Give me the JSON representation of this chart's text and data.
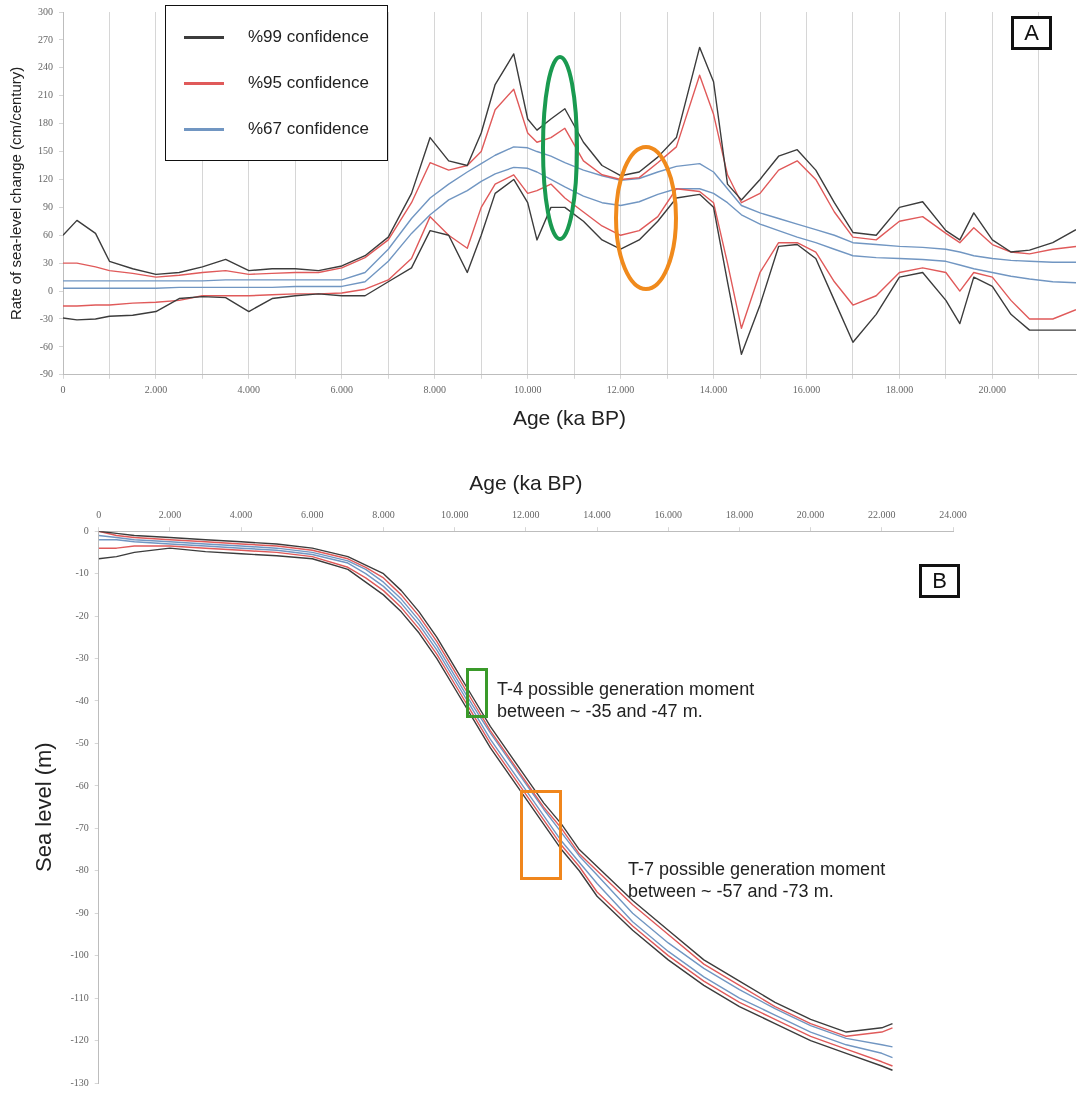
{
  "chart_data": [
    {
      "type": "line",
      "xlabel": "Age (ka BP)",
      "ylabel": "Rate of sea-level change (cm/century)",
      "legend": "top left",
      "grid": "x",
      "annotations": [
        "A"
      ],
      "x": [
        0,
        300,
        700,
        1000,
        1500,
        2000,
        2500,
        3000,
        3500,
        4000,
        4500,
        5000,
        5500,
        6000,
        6500,
        7000,
        7500,
        7900,
        8300,
        8700,
        9000,
        9300,
        9700,
        10000,
        10200,
        10500,
        10800,
        11200,
        11600,
        12000,
        12400,
        12800,
        13200,
        13700,
        14000,
        14300,
        14600,
        15000,
        15400,
        15800,
        16200,
        16600,
        17000,
        17500,
        18000,
        18500,
        19000,
        19300,
        19600,
        20000,
        20400,
        20800,
        21300,
        21800
      ],
      "xlim": [
        0,
        21800
      ],
      "xticks": [
        0,
        {
          "value": 1000,
          "label": null
        },
        {
          "value": 2000,
          "label": "2.000"
        },
        {
          "value": 3000,
          "label": null
        },
        {
          "value": 4000,
          "label": "4.000"
        },
        {
          "value": 5000,
          "label": null
        },
        {
          "value": 6000,
          "label": "6.000"
        },
        {
          "value": 7000,
          "label": null
        },
        {
          "value": 8000,
          "label": "8.000"
        },
        {
          "value": 9000,
          "label": null
        },
        {
          "value": 10000,
          "label": "10.000"
        },
        {
          "value": 11000,
          "label": null
        },
        {
          "value": 12000,
          "label": "12.000"
        },
        {
          "value": 13000,
          "label": null
        },
        {
          "value": 14000,
          "label": "14.000"
        },
        {
          "value": 15000,
          "label": null
        },
        {
          "value": 16000,
          "label": "16.000"
        },
        {
          "value": 17000,
          "label": null
        },
        {
          "value": 18000,
          "label": "18.000"
        },
        {
          "value": 19000,
          "label": null
        },
        {
          "value": 20000,
          "label": "20.000"
        },
        {
          "value": 21000,
          "label": null
        }
      ],
      "ylim": [
        -90,
        300
      ],
      "yticks": [
        -90,
        -60,
        -30,
        0,
        30,
        60,
        90,
        120,
        150,
        180,
        210,
        240,
        270,
        300
      ],
      "series": [
        {
          "name": "%99 confidence",
          "color": "#3c3c3c",
          "values": [
            60,
            76,
            62,
            32,
            24,
            18,
            20,
            26,
            34,
            22,
            24,
            24,
            22,
            27,
            38,
            58,
            105,
            165,
            140,
            135,
            170,
            222,
            255,
            185,
            173,
            185,
            196,
            160,
            135,
            124,
            128,
            144,
            165,
            262,
            225,
            115,
            98,
            120,
            145,
            152,
            130,
            95,
            63,
            60,
            90,
            96,
            65,
            55,
            84,
            55,
            42,
            44,
            52,
            66
          ]
        },
        {
          "name": "%95 confidence",
          "color": "#e05a5a",
          "values": [
            30,
            30,
            26,
            22,
            19,
            15,
            17,
            20,
            22,
            18,
            19,
            20,
            20,
            25,
            36,
            55,
            95,
            138,
            130,
            135,
            150,
            195,
            217,
            170,
            160,
            165,
            175,
            140,
            125,
            120,
            122,
            138,
            155,
            232,
            190,
            125,
            95,
            105,
            130,
            140,
            120,
            85,
            58,
            55,
            75,
            80,
            62,
            52,
            68,
            50,
            42,
            40,
            45,
            48
          ]
        },
        {
          "name": "%67 confidence",
          "color": "#7196c2",
          "values": [
            11,
            11,
            11,
            11,
            11,
            11,
            11,
            11,
            12,
            12,
            12,
            12,
            12,
            12,
            20,
            45,
            78,
            100,
            115,
            128,
            137,
            146,
            155,
            154,
            150,
            145,
            138,
            130,
            124,
            119,
            121,
            128,
            134,
            137,
            128,
            110,
            92,
            84,
            78,
            72,
            66,
            60,
            52,
            50,
            48,
            47,
            45,
            42,
            38,
            35,
            33,
            32,
            31,
            31
          ]
        },
        {
          "color": "#3c3c3c",
          "values": [
            -29,
            -31,
            -30,
            -27,
            -26,
            -22,
            -8,
            -6,
            -7,
            -22,
            -8,
            -5,
            -3,
            -5,
            -5,
            10,
            25,
            65,
            60,
            20,
            60,
            105,
            120,
            95,
            55,
            90,
            90,
            75,
            55,
            45,
            55,
            75,
            100,
            104,
            90,
            10,
            -68,
            -15,
            48,
            50,
            35,
            -10,
            -55,
            -25,
            15,
            20,
            -10,
            -35,
            15,
            5,
            -25,
            -42,
            -42,
            -42
          ]
        },
        {
          "color": "#e05a5a",
          "values": [
            -16,
            -16,
            -15,
            -15,
            -13,
            -12,
            -10,
            -5,
            -5,
            -5,
            -4,
            -3,
            -3,
            -2,
            2,
            12,
            35,
            80,
            60,
            46,
            90,
            115,
            125,
            105,
            108,
            115,
            100,
            85,
            70,
            60,
            65,
            80,
            110,
            107,
            95,
            30,
            -40,
            20,
            52,
            52,
            42,
            10,
            -15,
            -5,
            20,
            25,
            20,
            0,
            20,
            15,
            -10,
            -30,
            -30,
            -20
          ]
        },
        {
          "color": "#7196c2",
          "values": [
            3,
            3,
            3,
            3,
            3,
            3,
            4,
            4,
            4,
            4,
            4,
            5,
            5,
            5,
            10,
            32,
            62,
            82,
            98,
            108,
            118,
            126,
            133,
            132,
            128,
            120,
            112,
            102,
            95,
            92,
            96,
            104,
            110,
            110,
            105,
            95,
            82,
            72,
            65,
            58,
            52,
            45,
            38,
            36,
            35,
            34,
            32,
            28,
            24,
            20,
            16,
            13,
            10,
            9
          ]
        }
      ]
    },
    {
      "type": "line",
      "xlabel": "Age (ka BP)",
      "ylabel": "Sea level (m)",
      "annotations": [
        "B",
        "T-4 possible generation moment between ~ -35 and -47 m.",
        "T-7 possible generation moment between ~ -57 and -73 m."
      ],
      "x": [
        0,
        500,
        1000,
        2000,
        3000,
        4000,
        5000,
        6000,
        7000,
        7500,
        8000,
        8500,
        9000,
        9500,
        10000,
        10500,
        11000,
        11500,
        12000,
        12500,
        13000,
        13500,
        14000,
        15000,
        16000,
        17000,
        18000,
        19000,
        20000,
        21000,
        22000,
        22300
      ],
      "xlim": [
        0,
        24000
      ],
      "xticks": [
        0,
        {
          "value": 2000,
          "label": "2.000"
        },
        {
          "value": 4000,
          "label": "4.000"
        },
        {
          "value": 6000,
          "label": "6.000"
        },
        {
          "value": 8000,
          "label": "8.000"
        },
        {
          "value": 10000,
          "label": "10.000"
        },
        {
          "value": 12000,
          "label": "12.000"
        },
        {
          "value": 14000,
          "label": "14.000"
        },
        {
          "value": 16000,
          "label": "16.000"
        },
        {
          "value": 18000,
          "label": "18.000"
        },
        {
          "value": 20000,
          "label": "20.000"
        },
        {
          "value": 22000,
          "label": "22.000"
        },
        {
          "value": 24000,
          "label": "24.000"
        }
      ],
      "ylim": [
        -130,
        0
      ],
      "yticks": [
        -130,
        -120,
        -110,
        -100,
        -90,
        -80,
        -70,
        -60,
        -50,
        -40,
        -30,
        -20,
        -10,
        0
      ],
      "series": [
        {
          "color": "#3c3c3c",
          "values": [
            0,
            -0.5,
            -1,
            -1.5,
            -2,
            -2.5,
            -3,
            -4,
            -6,
            -8,
            -10,
            -14,
            -19,
            -25,
            -32,
            -39,
            -46,
            -52,
            -58,
            -64,
            -69,
            -75,
            -79,
            -87,
            -94,
            -101,
            -106,
            -111,
            -115,
            -118,
            -117,
            -116
          ]
        },
        {
          "color": "#e05a5a",
          "values": [
            0,
            -1,
            -1.5,
            -2,
            -2.5,
            -3,
            -3.5,
            -4.5,
            -6.5,
            -8.5,
            -11,
            -15,
            -20,
            -26,
            -33,
            -40,
            -47,
            -53,
            -59,
            -65,
            -70,
            -76,
            -80,
            -88,
            -95,
            -102,
            -107,
            -112,
            -116,
            -119,
            -118,
            -117
          ]
        },
        {
          "color": "#7196c2",
          "values": [
            -1,
            -1.5,
            -2,
            -2.5,
            -3,
            -3.5,
            -4,
            -5,
            -7,
            -9,
            -12,
            -16,
            -21,
            -27,
            -34,
            -41,
            -47.5,
            -53.5,
            -59.5,
            -65.5,
            -71,
            -76.5,
            -81,
            -90,
            -97,
            -103,
            -108,
            -112.5,
            -116.5,
            -119.5,
            -121,
            -121.5
          ]
        },
        {
          "color": "#7196c2",
          "values": [
            -2,
            -2,
            -2.5,
            -3,
            -3.5,
            -4,
            -4.5,
            -5.5,
            -7.5,
            -10,
            -13,
            -17,
            -22,
            -28,
            -35,
            -42,
            -49,
            -55,
            -61,
            -67,
            -73,
            -78,
            -83,
            -92,
            -99,
            -105,
            -110,
            -114,
            -118,
            -121,
            -123,
            -124
          ]
        },
        {
          "color": "#e05a5a",
          "values": [
            -4,
            -4,
            -3.5,
            -3.5,
            -4,
            -4.5,
            -5,
            -6,
            -8.5,
            -11,
            -14,
            -18,
            -23,
            -29,
            -36,
            -43,
            -50,
            -56,
            -62,
            -68,
            -74,
            -79,
            -85,
            -93,
            -100,
            -106,
            -111,
            -115,
            -119,
            -122,
            -125,
            -126
          ]
        },
        {
          "color": "#3c3c3c",
          "values": [
            -6.5,
            -6,
            -5,
            -4,
            -4.8,
            -5.3,
            -5.8,
            -6.5,
            -9,
            -12,
            -15,
            -19,
            -24,
            -30,
            -37,
            -44,
            -51,
            -57,
            -63,
            -69,
            -75,
            -80,
            -86,
            -94,
            -101,
            -107,
            -112,
            -116,
            -120,
            -123,
            -126,
            -127
          ]
        }
      ]
    }
  ]
}
